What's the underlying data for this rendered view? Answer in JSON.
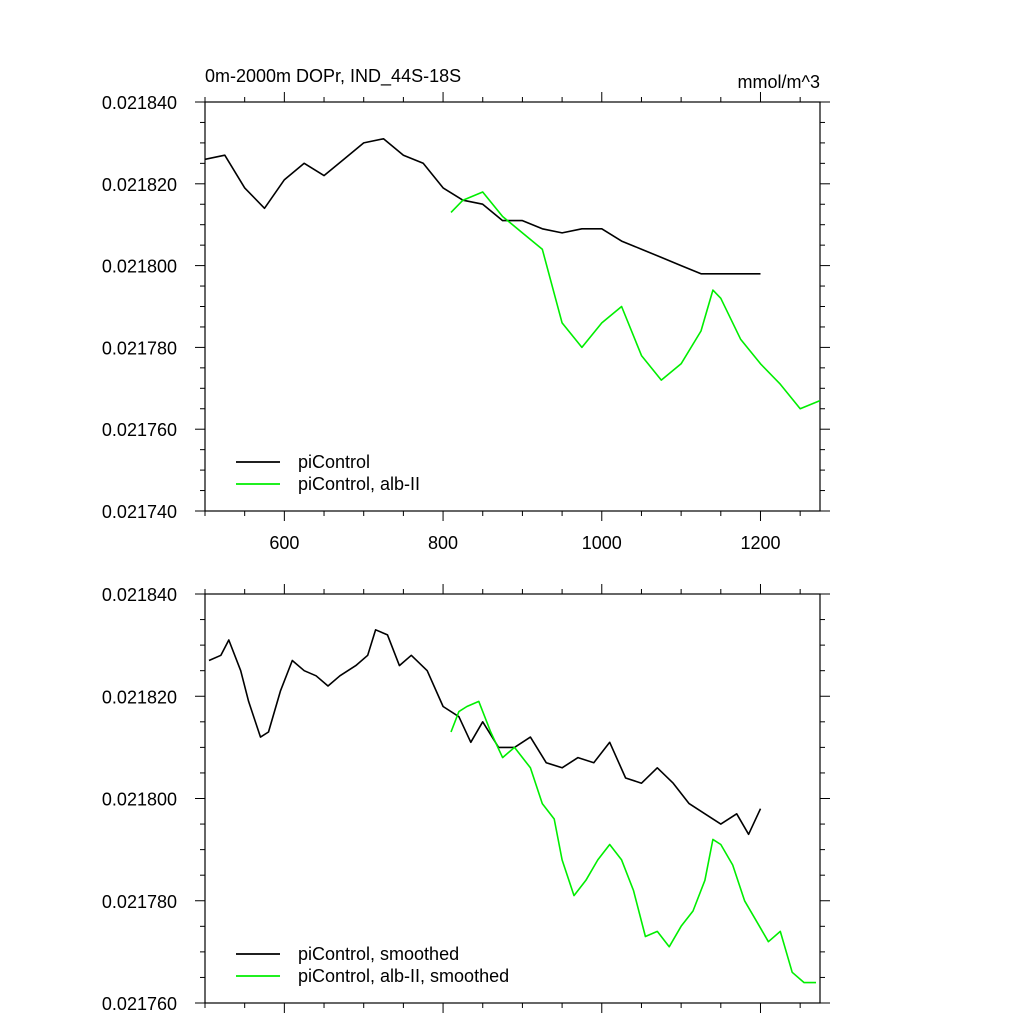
{
  "chart_data": [
    {
      "type": "line",
      "title": "0m-2000m DOPr, IND_44S-18S",
      "unit_label": "mmol/m^3",
      "xlim": [
        500,
        1275
      ],
      "ylim": [
        0.02174,
        0.02184
      ],
      "x_ticks": [
        600,
        800,
        1000,
        1200
      ],
      "x_tick_labels": [
        "600",
        "800",
        "1000",
        "1200"
      ],
      "y_ticks": [
        0.02174,
        0.02176,
        0.02178,
        0.0218,
        0.02182,
        0.02184
      ],
      "y_tick_labels": [
        "0.021740",
        "0.021760",
        "0.021780",
        "0.021800",
        "0.021820",
        "0.021840"
      ],
      "grid": false,
      "legend_position": "bottom-left",
      "series": [
        {
          "name": "piControl",
          "color": "#000000",
          "x": [
            500,
            525,
            550,
            575,
            600,
            625,
            650,
            675,
            700,
            725,
            750,
            775,
            800,
            825,
            850,
            875,
            900,
            925,
            950,
            975,
            1000,
            1025,
            1050,
            1075,
            1100,
            1125,
            1150,
            1175,
            1200
          ],
          "y": [
            0.021826,
            0.021827,
            0.021819,
            0.021814,
            0.021821,
            0.021825,
            0.021822,
            0.021826,
            0.02183,
            0.021831,
            0.021827,
            0.021825,
            0.021819,
            0.021816,
            0.021815,
            0.021811,
            0.021811,
            0.021809,
            0.021808,
            0.021809,
            0.021809,
            0.021806,
            0.021804,
            0.021802,
            0.0218,
            0.021798,
            0.021798,
            0.021798,
            0.021798
          ]
        },
        {
          "name": "piControl, alb-II",
          "color": "#00ee00",
          "x": [
            810,
            825,
            850,
            875,
            900,
            925,
            950,
            975,
            1000,
            1025,
            1050,
            1075,
            1100,
            1125,
            1140,
            1150,
            1175,
            1200,
            1225,
            1250,
            1275
          ],
          "y": [
            0.021813,
            0.021816,
            0.021818,
            0.021812,
            0.021808,
            0.021804,
            0.021786,
            0.02178,
            0.021786,
            0.02179,
            0.021778,
            0.021772,
            0.021776,
            0.021784,
            0.021794,
            0.021792,
            0.021782,
            0.021776,
            0.021771,
            0.021765,
            0.021767
          ]
        }
      ]
    },
    {
      "type": "line",
      "xlim": [
        500,
        1275
      ],
      "ylim": [
        0.02176,
        0.02184
      ],
      "x_ticks": [
        600,
        800,
        1000,
        1200
      ],
      "y_ticks": [
        0.02176,
        0.02178,
        0.0218,
        0.02182,
        0.02184
      ],
      "y_tick_labels": [
        "0.021760",
        "0.021780",
        "0.021800",
        "0.021820",
        "0.021840"
      ],
      "grid": false,
      "legend_position": "bottom-left",
      "series": [
        {
          "name": "piControl, smoothed",
          "color": "#000000",
          "x": [
            505,
            520,
            530,
            545,
            555,
            570,
            580,
            595,
            610,
            625,
            640,
            655,
            670,
            690,
            705,
            715,
            730,
            745,
            760,
            780,
            800,
            820,
            835,
            850,
            870,
            890,
            910,
            930,
            950,
            970,
            990,
            1010,
            1030,
            1050,
            1070,
            1090,
            1110,
            1130,
            1150,
            1170,
            1185,
            1200
          ],
          "y": [
            0.021827,
            0.021828,
            0.021831,
            0.021825,
            0.021819,
            0.021812,
            0.021813,
            0.021821,
            0.021827,
            0.021825,
            0.021824,
            0.021822,
            0.021824,
            0.021826,
            0.021828,
            0.021833,
            0.021832,
            0.021826,
            0.021828,
            0.021825,
            0.021818,
            0.021816,
            0.021811,
            0.021815,
            0.02181,
            0.02181,
            0.021812,
            0.021807,
            0.021806,
            0.021808,
            0.021807,
            0.021811,
            0.021804,
            0.021803,
            0.021806,
            0.021803,
            0.021799,
            0.021797,
            0.021795,
            0.021797,
            0.021793,
            0.021798
          ]
        },
        {
          "name": "piControl, alb-II, smoothed",
          "color": "#00ee00",
          "x": [
            810,
            820,
            830,
            845,
            860,
            875,
            890,
            910,
            925,
            940,
            950,
            965,
            980,
            995,
            1010,
            1025,
            1040,
            1055,
            1070,
            1085,
            1100,
            1115,
            1130,
            1140,
            1150,
            1165,
            1180,
            1195,
            1210,
            1225,
            1240,
            1255,
            1270
          ],
          "y": [
            0.021813,
            0.021817,
            0.021818,
            0.021819,
            0.021813,
            0.021808,
            0.02181,
            0.021806,
            0.021799,
            0.021796,
            0.021788,
            0.021781,
            0.021784,
            0.021788,
            0.021791,
            0.021788,
            0.021782,
            0.021773,
            0.021774,
            0.021771,
            0.021775,
            0.021778,
            0.021784,
            0.021792,
            0.021791,
            0.021787,
            0.02178,
            0.021776,
            0.021772,
            0.021774,
            0.021766,
            0.021764,
            0.021764
          ]
        }
      ]
    }
  ]
}
